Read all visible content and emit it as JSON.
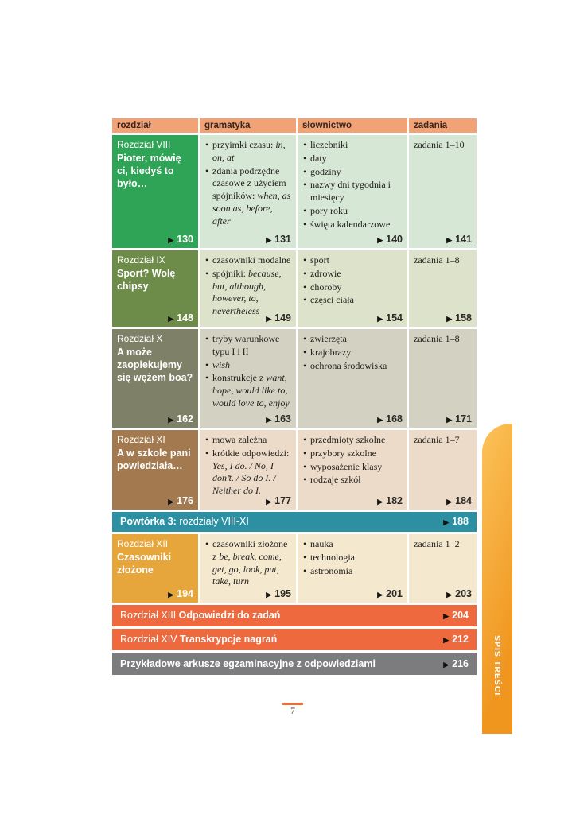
{
  "icons": {
    "page_arrow": "▶"
  },
  "colors": {
    "header_bg": "#f1a376",
    "row_chapter_bg": [
      "#2fa356",
      "#6e8c49",
      "#7e8167",
      "#a37a4f",
      "#e7a63b"
    ],
    "row_light_bg": [
      "#d6e7d5",
      "#dde2ca",
      "#d3d2c2",
      "#ecdbc8",
      "#f4e8ce"
    ],
    "teal_bar": "#2d8fa2",
    "orange_bar": "#ee6a3e",
    "gray_bar": "#7c7c7e",
    "side_tab": "#f0951e",
    "footer_line": "#f26a31"
  },
  "header": {
    "col_rozdzial": "rozdział",
    "col_gramatyka": "gramatyka",
    "col_slownictwo": "słownictwo",
    "col_zadania": "zadania"
  },
  "rows": [
    {
      "chapter": "Rozdział VIII",
      "title": "Pioter, mówię ci, kiedyś to było…",
      "chapter_page": "130",
      "grammar": {
        "items": [
          [
            {
              "t": "przyimki czasu: "
            },
            {
              "t": "in, on, at",
              "i": true
            }
          ],
          [
            {
              "t": "zdania podrzędne czasowe z użyciem spójników: "
            },
            {
              "t": "when, as soon as, before, after",
              "i": true
            }
          ]
        ],
        "page": "131"
      },
      "vocab": {
        "items": [
          [
            {
              "t": "liczebniki"
            }
          ],
          [
            {
              "t": "daty"
            }
          ],
          [
            {
              "t": "godziny"
            }
          ],
          [
            {
              "t": "nazwy dni tygodnia i miesięcy"
            }
          ],
          [
            {
              "t": "pory roku"
            }
          ],
          [
            {
              "t": "święta kalendarzowe"
            }
          ]
        ],
        "page": "140"
      },
      "tasks": {
        "label": "zadania 1–10",
        "page": "141"
      }
    },
    {
      "chapter": "Rozdział IX",
      "title": "Sport? Wolę chipsy",
      "chapter_page": "148",
      "grammar": {
        "items": [
          [
            {
              "t": "czasowniki modalne"
            }
          ],
          [
            {
              "t": "spójniki: "
            },
            {
              "t": "because, but, although, however, to, nevertheless",
              "i": true
            }
          ]
        ],
        "page": "149"
      },
      "vocab": {
        "items": [
          [
            {
              "t": "sport"
            }
          ],
          [
            {
              "t": "zdrowie"
            }
          ],
          [
            {
              "t": "choroby"
            }
          ],
          [
            {
              "t": "części ciała"
            }
          ]
        ],
        "page": "154"
      },
      "tasks": {
        "label": "zadania 1–8",
        "page": "158"
      }
    },
    {
      "chapter": "Rozdział X",
      "title": "A może zaopiekujemy się wężem boa?",
      "chapter_page": "162",
      "grammar": {
        "items": [
          [
            {
              "t": "tryby warunkowe typu I i II"
            }
          ],
          [
            {
              "t": "wish",
              "i": true
            }
          ],
          [
            {
              "t": "konstrukcje z "
            },
            {
              "t": "want, hope, would like to, would love to, enjoy",
              "i": true
            }
          ]
        ],
        "page": "163"
      },
      "vocab": {
        "items": [
          [
            {
              "t": "zwierzęta"
            }
          ],
          [
            {
              "t": "krajobrazy"
            }
          ],
          [
            {
              "t": "ochrona środowiska"
            }
          ]
        ],
        "page": "168"
      },
      "tasks": {
        "label": "zadania 1–8",
        "page": "171"
      }
    },
    {
      "chapter": "Rozdział XI",
      "title": "A w szkole pani powiedziała…",
      "chapter_page": "176",
      "grammar": {
        "items": [
          [
            {
              "t": "mowa zależna"
            }
          ],
          [
            {
              "t": "krótkie odpowiedzi: "
            },
            {
              "t": "Yes, I do. / No, I don’t. / So do I. / Neither do I.",
              "i": true
            }
          ]
        ],
        "page": "177"
      },
      "vocab": {
        "items": [
          [
            {
              "t": "przedmioty szkolne"
            }
          ],
          [
            {
              "t": "przybory szkolne"
            }
          ],
          [
            {
              "t": "wyposażenie klasy"
            }
          ],
          [
            {
              "t": "rodzaje szkół"
            }
          ]
        ],
        "page": "182"
      },
      "tasks": {
        "label": "zadania 1–7",
        "page": "184"
      }
    },
    {
      "chapter": "Rozdział XII",
      "title": "Czasowniki złożone",
      "chapter_page": "194",
      "grammar": {
        "items": [
          [
            {
              "t": "czasowniki złożone z "
            },
            {
              "t": "be, break, come, get, go, look, put, take, turn",
              "i": true
            }
          ]
        ],
        "page": "195"
      },
      "vocab": {
        "items": [
          [
            {
              "t": "nauka"
            }
          ],
          [
            {
              "t": "technologia"
            }
          ],
          [
            {
              "t": "astronomia"
            }
          ]
        ],
        "page": "201"
      },
      "tasks": {
        "label": "zadania 1–2",
        "page": "203"
      }
    }
  ],
  "bars": {
    "powtorka": {
      "bold": "Powtórka 3: ",
      "regular": "rozdziały VIII-XI",
      "page": "188"
    },
    "chapter13": {
      "regular": "Rozdział XIII ",
      "bold": "Odpowiedzi do zadań",
      "page": "204"
    },
    "chapter14": {
      "regular": "Rozdział XIV ",
      "bold": "Transkrypcje nagrań",
      "page": "212"
    },
    "arkusze": {
      "bold": "Przykładowe arkusze egzaminacyjne z odpowiedziami",
      "page": "216"
    }
  },
  "footer": {
    "page_number": "7"
  },
  "side_tab": {
    "label": "SPIS TREŚCI"
  }
}
